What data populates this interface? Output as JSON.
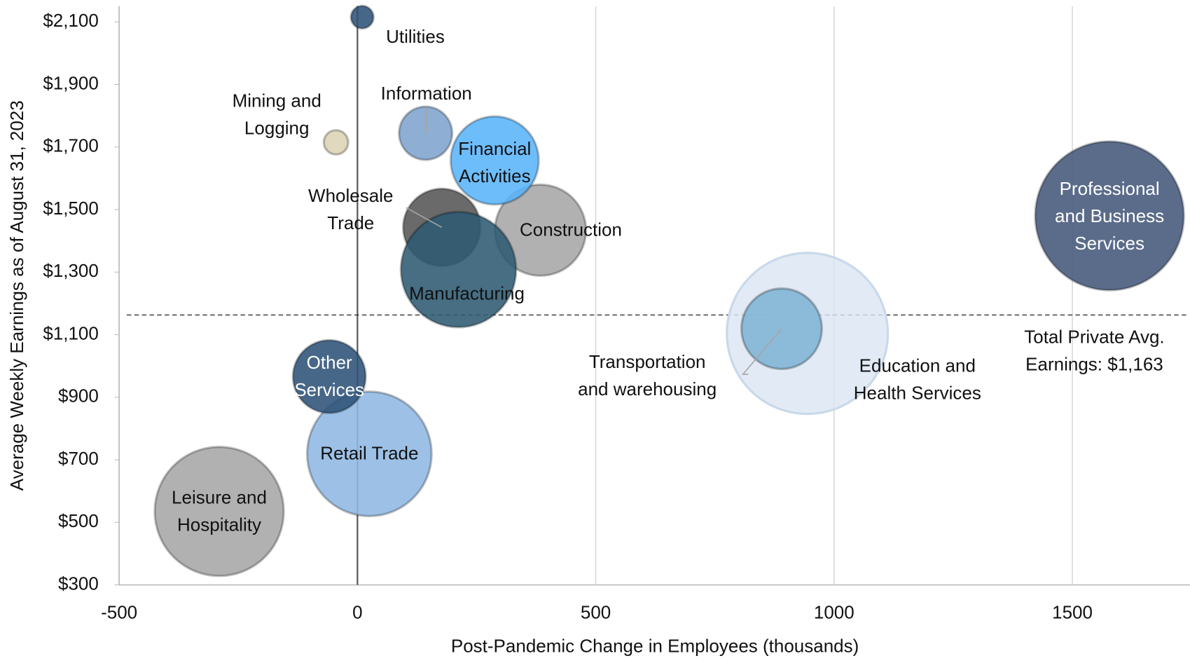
{
  "chart_data": {
    "type": "bubble",
    "xlabel": "Post-Pandemic Change in Employees (thousands)",
    "ylabel": "Average Weekly Earnings as of August 31, 2023",
    "xlim": [
      -500,
      1750
    ],
    "ylim": [
      300,
      2150
    ],
    "xticks": [
      -500,
      0,
      500,
      1000,
      1500
    ],
    "yticks": [
      {
        "value": 300,
        "label": "$300"
      },
      {
        "value": 500,
        "label": "$500"
      },
      {
        "value": 700,
        "label": "$700"
      },
      {
        "value": 900,
        "label": "$900"
      },
      {
        "value": 1100,
        "label": "$1,100"
      },
      {
        "value": 1300,
        "label": "$1,300"
      },
      {
        "value": 1500,
        "label": "$1,500"
      },
      {
        "value": 1700,
        "label": "$1,700"
      },
      {
        "value": 1900,
        "label": "$1,900"
      },
      {
        "value": 2100,
        "label": "$2,100"
      }
    ],
    "grid": "x",
    "reference_line": {
      "value": 1163,
      "label": "Total Private Avg. Earnings: $1,163"
    },
    "series": [
      {
        "name": "Education and Health Services",
        "color": "#dbe6f2",
        "x": 944,
        "y": 1104,
        "size": 25000
      },
      {
        "name": "Transportation and warehousing",
        "color": "#7fb3d5",
        "x": 890,
        "y": 1119,
        "size": 6250
      },
      {
        "name": "Leisure and Hospitality",
        "color": "#a6a6a6",
        "x": -290,
        "y": 535,
        "size": 16080
      },
      {
        "name": "Retail Trade",
        "color": "#8fb8e3",
        "x": 25,
        "y": 719,
        "size": 14960
      },
      {
        "name": "Professional and Business Services",
        "color": "#44587a",
        "x": 1578,
        "y": 1480,
        "size": 21370
      },
      {
        "name": "Construction",
        "color": "#a6a6a6",
        "x": 384,
        "y": 1434,
        "size": 8010
      },
      {
        "name": "Wholesale Trade",
        "color": "#555555",
        "x": 177,
        "y": 1443,
        "size": 5790
      },
      {
        "name": "Manufacturing",
        "color": "#2e5a72",
        "x": 212,
        "y": 1308,
        "size": 12850
      },
      {
        "name": "Financial Activities",
        "color": "#5ab4fb",
        "x": 288,
        "y": 1657,
        "size": 7490
      },
      {
        "name": "Information",
        "color": "#7ea3cd",
        "x": 143,
        "y": 1744,
        "size": 2730
      },
      {
        "name": "Mining and Logging",
        "color": "#ddd4b4",
        "x": -45,
        "y": 1715,
        "size": 570
      },
      {
        "name": "Other Services",
        "color": "#2d5277",
        "x": -59,
        "y": 966,
        "size": 5130
      },
      {
        "name": "Utilities",
        "color": "#2f5277",
        "x": 10,
        "y": 2115,
        "size": 500
      }
    ]
  }
}
